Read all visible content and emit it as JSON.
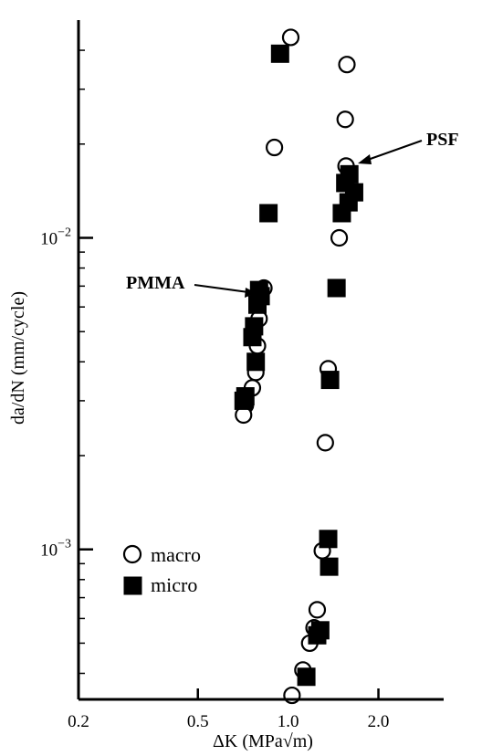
{
  "chart_data": {
    "type": "scatter",
    "title": "",
    "xlabel": "ΔK (MPa√m)",
    "ylabel": "da/dN (mm/cycle)",
    "x_scale": "log",
    "y_scale": "log",
    "xlim": [
      0.2,
      3.3
    ],
    "ylim": [
      0.00033,
      0.05
    ],
    "x_ticks": [
      {
        "value": 0.2,
        "label": "0.2"
      },
      {
        "value": 0.5,
        "label": "0.5"
      },
      {
        "value": 1.0,
        "label": "1.0"
      },
      {
        "value": 2.0,
        "label": "2.0"
      }
    ],
    "y_ticks": [
      {
        "value": 0.01,
        "base": "10",
        "exp": "−2"
      },
      {
        "value": 0.001,
        "base": "10",
        "exp": "−3"
      }
    ],
    "grid": false,
    "legend_position": "lower-left",
    "series": [
      {
        "name": "macro",
        "marker": "open-circle",
        "points": [
          [
            1.02,
            0.044
          ],
          [
            1.57,
            0.036
          ],
          [
            1.55,
            0.024
          ],
          [
            0.9,
            0.0195
          ],
          [
            1.56,
            0.017
          ],
          [
            1.48,
            0.01
          ],
          [
            0.83,
            0.0069
          ],
          [
            0.8,
            0.0055
          ],
          [
            0.79,
            0.0045
          ],
          [
            0.78,
            0.0037
          ],
          [
            0.76,
            0.0033
          ],
          [
            0.72,
            0.0029
          ],
          [
            0.71,
            0.0027
          ],
          [
            1.36,
            0.0038
          ],
          [
            1.33,
            0.0022
          ],
          [
            1.3,
            0.00099
          ],
          [
            1.25,
            0.00064
          ],
          [
            1.22,
            0.00056
          ],
          [
            1.18,
            0.0005
          ],
          [
            1.12,
            0.00041
          ],
          [
            1.03,
            0.00034
          ]
        ]
      },
      {
        "name": "micro",
        "marker": "filled-square",
        "points": [
          [
            0.94,
            0.039
          ],
          [
            1.6,
            0.016
          ],
          [
            1.55,
            0.015
          ],
          [
            1.66,
            0.014
          ],
          [
            1.59,
            0.013
          ],
          [
            0.86,
            0.012
          ],
          [
            1.51,
            0.012
          ],
          [
            1.45,
            0.0069
          ],
          [
            0.8,
            0.0068
          ],
          [
            0.81,
            0.0065
          ],
          [
            0.79,
            0.0061
          ],
          [
            0.77,
            0.0052
          ],
          [
            0.76,
            0.0048
          ],
          [
            0.78,
            0.004
          ],
          [
            0.72,
            0.0031
          ],
          [
            0.71,
            0.003
          ],
          [
            1.38,
            0.0035
          ],
          [
            1.36,
            0.00108
          ],
          [
            1.37,
            0.00088
          ],
          [
            1.28,
            0.00055
          ],
          [
            1.25,
            0.00053
          ],
          [
            1.15,
            0.00039
          ]
        ]
      }
    ],
    "annotations": [
      {
        "text": "PSF",
        "target": [
          1.58,
          0.0165
        ]
      },
      {
        "text": "PMMA",
        "target": [
          0.79,
          0.0061
        ]
      }
    ]
  }
}
